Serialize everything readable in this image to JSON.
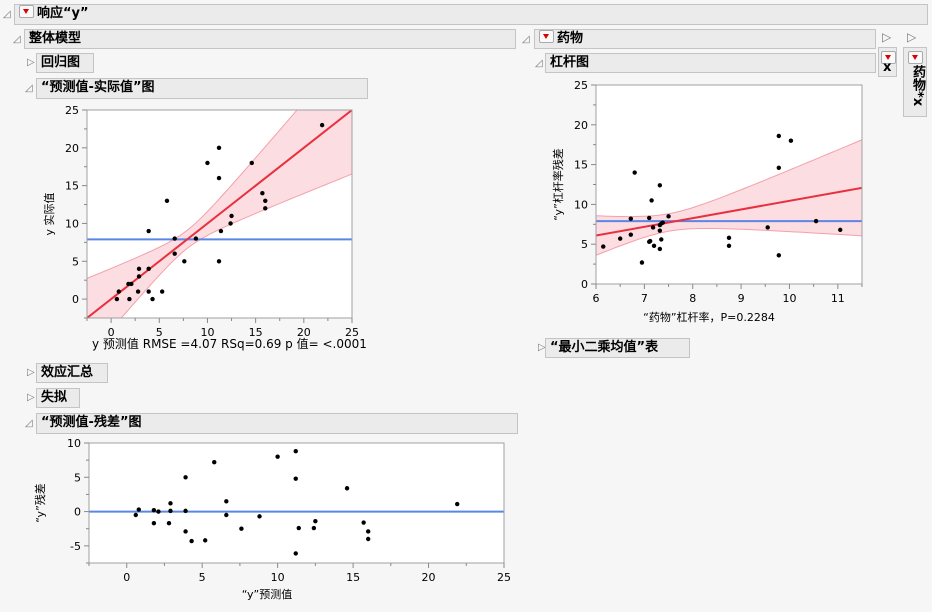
{
  "top": {
    "title": "响应“y”"
  },
  "whole_model": {
    "title": "整体模型",
    "sections": {
      "regression_plot": "回归图",
      "actual_by_predicted": "“预测值-实际值”图",
      "effect_summary": "效应汇总",
      "lack_of_fit": "失拟",
      "residual_by_predicted": "“预测值-残差”图"
    },
    "summary_caption": "y 预测值 RMSE =4.07 RSq=0.69 p 值= <.0001"
  },
  "drug": {
    "title": "药物",
    "leverage_title": "杠杆图",
    "ls_means_title": "“最小二乘均值”表"
  },
  "side_boxes": [
    {
      "label": "x"
    },
    {
      "label": "药物*x"
    }
  ],
  "colors": {
    "fit_line": "#e8303f",
    "band_fill": "#fcdde2",
    "band_edge": "#f4a0ab",
    "mean_line": "#5a86e6",
    "point": "#000000"
  },
  "chart_data": [
    {
      "id": "actual_by_predicted",
      "type": "scatter",
      "xlabel": "",
      "ylabel": "y 实际值",
      "xlim": [
        -2.5,
        25
      ],
      "ylim": [
        -2.5,
        25
      ],
      "xticks": [
        0,
        5,
        10,
        15,
        20,
        25
      ],
      "yticks": [
        0,
        5,
        10,
        15,
        20,
        25
      ],
      "mean_line": 7.9,
      "fit": {
        "intercept": 0,
        "slope": 1
      },
      "ci_band": {
        "center_x": 7.9,
        "min_halfwidth": 1.2,
        "curvature": 0.24
      },
      "points": [
        [
          0.6,
          0
        ],
        [
          0.8,
          1
        ],
        [
          1.8,
          2
        ],
        [
          2.1,
          2
        ],
        [
          1.9,
          0
        ],
        [
          2.9,
          4
        ],
        [
          2.9,
          3
        ],
        [
          2.8,
          1
        ],
        [
          3.9,
          4
        ],
        [
          3.9,
          1
        ],
        [
          4.3,
          0
        ],
        [
          5.3,
          1
        ],
        [
          3.9,
          9
        ],
        [
          5.8,
          13
        ],
        [
          6.6,
          8
        ],
        [
          6.6,
          6
        ],
        [
          7.6,
          5
        ],
        [
          8.8,
          8
        ],
        [
          10,
          18
        ],
        [
          11.2,
          20
        ],
        [
          11.2,
          16
        ],
        [
          11.2,
          5
        ],
        [
          11.4,
          9
        ],
        [
          12.4,
          10
        ],
        [
          12.5,
          11
        ],
        [
          14.6,
          18
        ],
        [
          15.7,
          14
        ],
        [
          16,
          13
        ],
        [
          16,
          12
        ],
        [
          21.9,
          23
        ]
      ]
    },
    {
      "id": "leverage",
      "type": "scatter",
      "xlabel": "“药物”杠杆率，P=0.2284",
      "ylabel": "“y”杠杆率残差",
      "xlim": [
        6,
        11.5
      ],
      "ylim": [
        0,
        25
      ],
      "xticks": [
        6,
        7,
        8,
        9,
        10,
        11
      ],
      "yticks": [
        0,
        5,
        10,
        15,
        20,
        25
      ],
      "mean_line": 7.9,
      "fit": {
        "intercept": -0.45,
        "slope": 1.09
      },
      "ci_band": {
        "center_x": 7.5,
        "min_halfwidth": 1.1,
        "curvature": 2.2
      },
      "points": [
        [
          6.15,
          4.7
        ],
        [
          6.5,
          5.7
        ],
        [
          6.72,
          8.2
        ],
        [
          6.72,
          6.2
        ],
        [
          6.8,
          14
        ],
        [
          6.95,
          2.7
        ],
        [
          7.1,
          8.3
        ],
        [
          7.1,
          5.3
        ],
        [
          7.12,
          5.4
        ],
        [
          7.15,
          10.5
        ],
        [
          7.18,
          7.1
        ],
        [
          7.2,
          4.8
        ],
        [
          7.32,
          12.4
        ],
        [
          7.32,
          7.4
        ],
        [
          7.32,
          6.7
        ],
        [
          7.32,
          4.4
        ],
        [
          7.35,
          7.6
        ],
        [
          7.35,
          5.6
        ],
        [
          7.38,
          7.7
        ],
        [
          7.5,
          8.5
        ],
        [
          8.75,
          5.8
        ],
        [
          8.75,
          4.8
        ],
        [
          9.55,
          7.1
        ],
        [
          9.78,
          18.6
        ],
        [
          9.78,
          14.6
        ],
        [
          9.78,
          3.6
        ],
        [
          10.03,
          18
        ],
        [
          10.55,
          7.9
        ],
        [
          11.05,
          6.8
        ]
      ]
    },
    {
      "id": "residual_by_predicted",
      "type": "scatter",
      "xlabel": "“y”预测值",
      "ylabel": "“y”残差",
      "xlim": [
        -2.5,
        25
      ],
      "ylim": [
        -7.5,
        10
      ],
      "xticks": [
        0,
        5,
        10,
        15,
        20,
        25
      ],
      "yticks": [
        -5,
        0,
        5,
        10
      ],
      "mean_line": 0,
      "points": [
        [
          0.6,
          -0.5
        ],
        [
          0.8,
          0.3
        ],
        [
          1.8,
          0.2
        ],
        [
          1.8,
          -1.7
        ],
        [
          2.1,
          0
        ],
        [
          2.9,
          1.2
        ],
        [
          2.9,
          0.1
        ],
        [
          2.8,
          -1.7
        ],
        [
          3.9,
          5
        ],
        [
          3.9,
          0.1
        ],
        [
          3.9,
          -2.9
        ],
        [
          4.3,
          -4.3
        ],
        [
          5.2,
          -4.2
        ],
        [
          5.8,
          7.2
        ],
        [
          6.6,
          1.5
        ],
        [
          6.6,
          -0.5
        ],
        [
          7.6,
          -2.5
        ],
        [
          8.8,
          -0.7
        ],
        [
          10,
          8
        ],
        [
          11.2,
          8.8
        ],
        [
          11.2,
          4.8
        ],
        [
          11.2,
          -6.1
        ],
        [
          11.4,
          -2.4
        ],
        [
          12.4,
          -2.4
        ],
        [
          12.5,
          -1.4
        ],
        [
          14.6,
          3.4
        ],
        [
          15.7,
          -1.6
        ],
        [
          16,
          -2.9
        ],
        [
          16,
          -4
        ],
        [
          21.9,
          1.1
        ]
      ]
    }
  ]
}
